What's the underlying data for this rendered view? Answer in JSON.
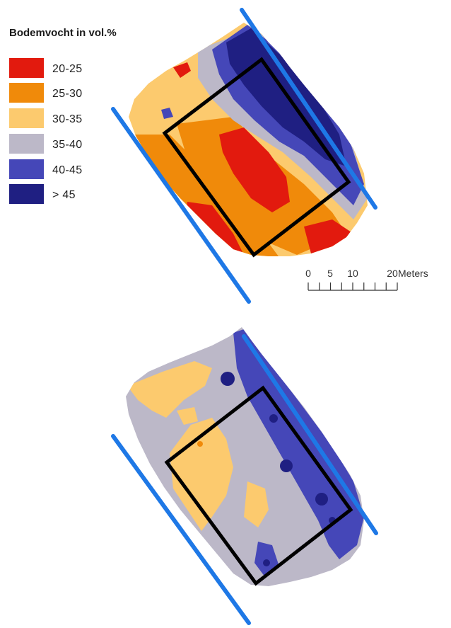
{
  "legend": {
    "title": "Bodemvocht in vol.%",
    "items": [
      {
        "label": "20-25",
        "color": "#e21a0e"
      },
      {
        "label": "25-30",
        "color": "#f08a0a"
      },
      {
        "label": "30-35",
        "color": "#fcca6e"
      },
      {
        "label": "35-40",
        "color": "#bcb8c8"
      },
      {
        "label": "40-45",
        "color": "#4547b8"
      },
      {
        "label": "> 45",
        "color": "#1f1f82"
      }
    ]
  },
  "scalebar": {
    "ticks": [
      "0",
      "5",
      "10",
      "20"
    ],
    "units": "Meters"
  },
  "colors": {
    "boundary_line": "#1e78e6",
    "plot_outline": "#000000"
  }
}
